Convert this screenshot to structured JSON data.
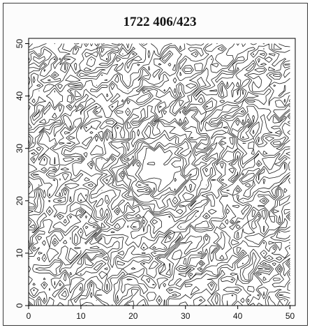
{
  "chart_data": {
    "type": "contour",
    "title": "1722 406/423",
    "xlabel": "",
    "ylabel": "",
    "xlim": [
      0,
      51
    ],
    "ylim": [
      0,
      51
    ],
    "x_ticks": [
      0,
      10,
      20,
      30,
      40,
      50
    ],
    "y_ticks": [
      0,
      10,
      20,
      30,
      40,
      50
    ],
    "grid": false,
    "field": {
      "description": "noisy 51x51 intensity field with a concentrated peak; contours drawn as line iso-levels",
      "peak_center": [
        25,
        26
      ],
      "grid_size": 51,
      "contour_levels": 14
    },
    "colors": {
      "line": "#1a1a1a",
      "axes": "#000000",
      "background": "#ffffff"
    }
  }
}
